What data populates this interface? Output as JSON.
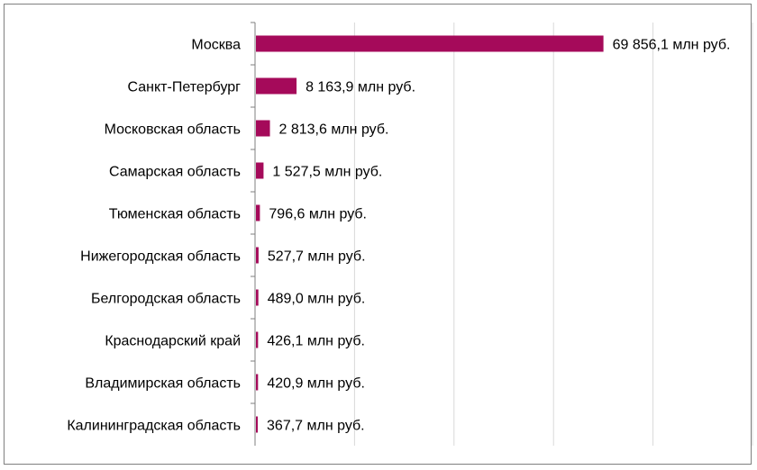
{
  "chart_data": {
    "type": "bar",
    "orientation": "horizontal",
    "categories": [
      "Москва",
      "Санкт-Петербург",
      "Московская область",
      "Самарская область",
      "Тюменская область",
      "Нижегородская область",
      "Белгородская область",
      "Краснодарский край",
      "Владимирская область",
      "Калининградская  область"
    ],
    "values": [
      69856.1,
      8163.9,
      2813.6,
      1527.5,
      796.6,
      527.7,
      489.0,
      426.1,
      420.9,
      367.7
    ],
    "data_labels": [
      "69 856,1 млн руб.",
      "8 163,9 млн руб.",
      "2 813,6 млн руб.",
      "1 527,5 млн руб.",
      "796,6 млн руб.",
      "527,7 млн руб.",
      "489,0 млн руб.",
      "426,1 млн руб.",
      "420,9 млн руб.",
      "367,7 млн руб."
    ],
    "xlim": [
      0,
      100000
    ],
    "grid": true,
    "legend": "none",
    "colors": {
      "bar": "#a50a5a",
      "grid": "#d9d9d9",
      "axis": "#7f7f7f"
    }
  }
}
